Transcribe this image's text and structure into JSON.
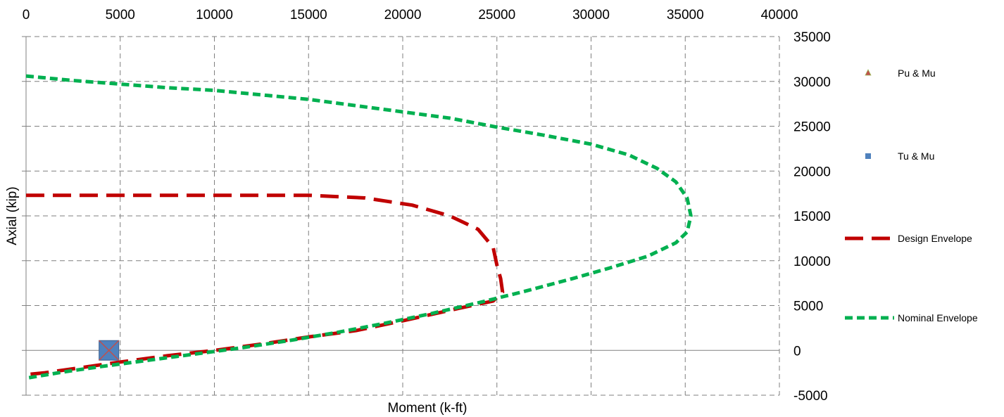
{
  "chart_data": {
    "type": "line",
    "xlabel": "Moment (k-ft)",
    "ylabel": "Axial (kip)",
    "xlim": [
      0,
      40000
    ],
    "ylim": [
      -5000,
      35000
    ],
    "x_ticks": [
      0,
      5000,
      10000,
      15000,
      20000,
      25000,
      30000,
      35000,
      40000
    ],
    "y_ticks": [
      -5000,
      0,
      5000,
      10000,
      15000,
      20000,
      25000,
      30000,
      35000
    ],
    "grid": true,
    "legend_position": "right",
    "series": [
      {
        "name": "Pu & Mu",
        "kind": "marker",
        "marker": "triangle",
        "color": "#c0504d",
        "points": [
          [
            4400,
            0
          ]
        ]
      },
      {
        "name": "Tu & Mu",
        "kind": "marker",
        "marker": "square",
        "color": "#4f81bd",
        "points": [
          [
            4400,
            0
          ]
        ]
      },
      {
        "name": "Design Envelope",
        "kind": "line",
        "dash": "dashed",
        "color": "#c00000",
        "points": [
          [
            0,
            17300
          ],
          [
            5000,
            17300
          ],
          [
            10000,
            17300
          ],
          [
            15000,
            17300
          ],
          [
            18000,
            17000
          ],
          [
            20500,
            16200
          ],
          [
            22500,
            15000
          ],
          [
            24000,
            13500
          ],
          [
            24800,
            11500
          ],
          [
            25000,
            9500
          ],
          [
            25200,
            8000
          ],
          [
            25300,
            6500
          ],
          [
            24800,
            5500
          ],
          [
            23000,
            4700
          ],
          [
            20000,
            3300
          ],
          [
            17500,
            2200
          ],
          [
            15000,
            1500
          ],
          [
            12500,
            700
          ],
          [
            10000,
            0
          ],
          [
            7500,
            -600
          ],
          [
            5000,
            -1300
          ],
          [
            3000,
            -1900
          ],
          [
            1000,
            -2500
          ],
          [
            0,
            -2700
          ]
        ]
      },
      {
        "name": "Nominal Envelope",
        "kind": "line",
        "dash": "dotted-dash",
        "color": "#00b050",
        "points": [
          [
            0,
            30600
          ],
          [
            2500,
            30100
          ],
          [
            5000,
            29700
          ],
          [
            7500,
            29300
          ],
          [
            10000,
            29000
          ],
          [
            12500,
            28500
          ],
          [
            15000,
            28000
          ],
          [
            17500,
            27300
          ],
          [
            20000,
            26600
          ],
          [
            22500,
            25900
          ],
          [
            25000,
            24900
          ],
          [
            27500,
            24000
          ],
          [
            30000,
            23000
          ],
          [
            32000,
            21800
          ],
          [
            33500,
            20300
          ],
          [
            34500,
            18800
          ],
          [
            35100,
            17000
          ],
          [
            35300,
            15000
          ],
          [
            35100,
            13200
          ],
          [
            34500,
            12000
          ],
          [
            33000,
            10500
          ],
          [
            31000,
            9200
          ],
          [
            29000,
            8000
          ],
          [
            26500,
            6600
          ],
          [
            24000,
            5300
          ],
          [
            21500,
            4100
          ],
          [
            19000,
            3000
          ],
          [
            16500,
            2000
          ],
          [
            14000,
            1100
          ],
          [
            11500,
            300
          ],
          [
            9000,
            -400
          ],
          [
            6500,
            -1100
          ],
          [
            4000,
            -1800
          ],
          [
            2000,
            -2400
          ],
          [
            0,
            -3100
          ]
        ]
      }
    ]
  }
}
